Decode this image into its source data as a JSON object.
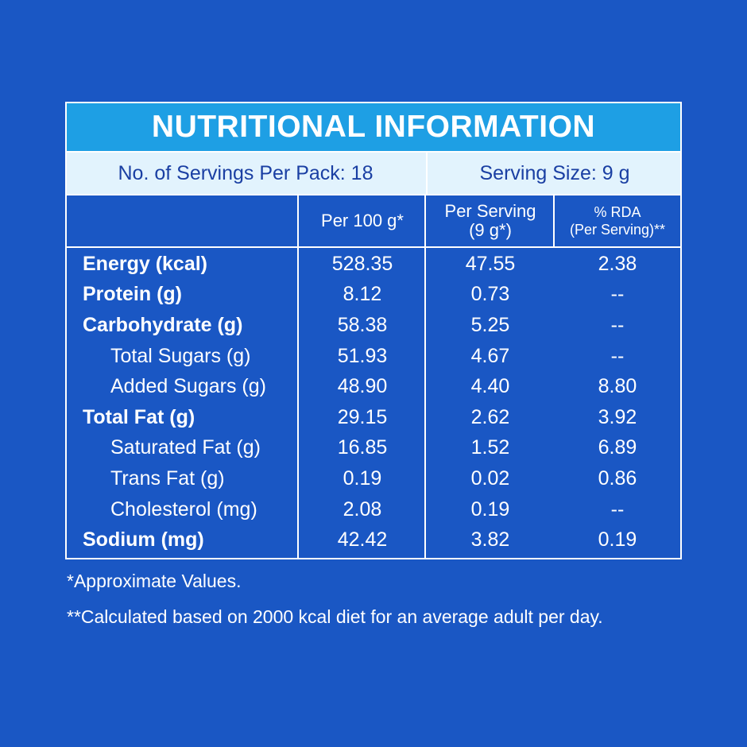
{
  "title": "NUTRITIONAL INFORMATION",
  "servings_per_pack": "No. of Servings Per Pack: 18",
  "serving_size": "Serving Size: 9 g",
  "columns": {
    "per100_label": "Per 100 g*",
    "per_serving_line1": "Per Serving",
    "per_serving_line2": "(9 g*)",
    "rda_line1": "% RDA",
    "rda_line2": "(Per Serving)**"
  },
  "rows": [
    {
      "label": "Energy (kcal)",
      "per100": "528.35",
      "per_serving": "47.55",
      "rda": "2.38"
    },
    {
      "label": "Protein (g)",
      "per100": "8.12",
      "per_serving": "0.73",
      "rda": "--"
    },
    {
      "label": "Carbohydrate (g)",
      "per100": "58.38",
      "per_serving": "5.25",
      "rda": "--"
    },
    {
      "label": "Total Sugars (g)",
      "per100": "51.93",
      "per_serving": "4.67",
      "rda": "--"
    },
    {
      "label": "Added Sugars (g)",
      "per100": "48.90",
      "per_serving": "4.40",
      "rda": "8.80"
    },
    {
      "label": "Total Fat (g)",
      "per100": "29.15",
      "per_serving": "2.62",
      "rda": "3.92"
    },
    {
      "label": "Saturated Fat (g)",
      "per100": "16.85",
      "per_serving": "1.52",
      "rda": "6.89"
    },
    {
      "label": "Trans Fat (g)",
      "per100": "0.19",
      "per_serving": "0.02",
      "rda": "0.86"
    },
    {
      "label": "Cholesterol (mg)",
      "per100": "2.08",
      "per_serving": "0.19",
      "rda": "--"
    },
    {
      "label": "Sodium (mg)",
      "per100": "42.42",
      "per_serving": "3.82",
      "rda": "0.19"
    }
  ],
  "footnotes": {
    "approx": "*Approximate Values.",
    "calc": "**Calculated based on 2000 kcal diet for an average adult per day."
  },
  "colors": {
    "background": "#1a57c4",
    "title_bar": "#1e9fe4",
    "serving_bar": "#e2f3fd",
    "serving_text": "#1a3fa3"
  }
}
